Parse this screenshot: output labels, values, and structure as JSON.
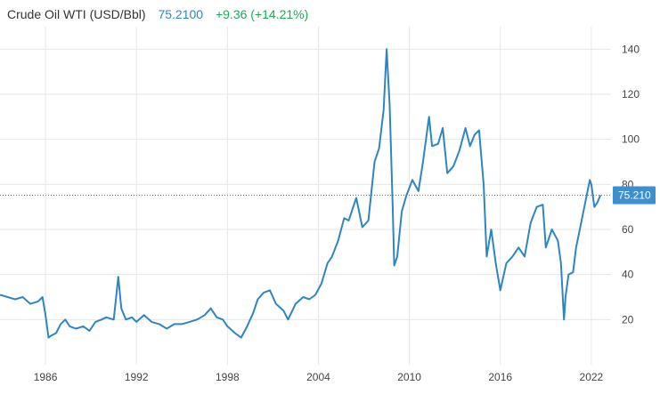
{
  "header": {
    "title": "Crude Oil WTI (USD/Bbl)",
    "price": "75.2100",
    "change": "+9.36 (+14.21%)"
  },
  "colors": {
    "line": "#2e86c1",
    "grid": "#e6e6e6",
    "change_positive": "#1aaa55",
    "badge_bg": "#3d8fcf"
  },
  "chart_data": {
    "type": "line",
    "title": "Crude Oil WTI (USD/Bbl)",
    "xlabel": "",
    "ylabel": "",
    "xlim": [
      1983,
      2023.3
    ],
    "ylim": [
      0,
      150
    ],
    "x_ticks": [
      1986,
      1992,
      1998,
      2004,
      2010,
      2016,
      2022
    ],
    "y_ticks": [
      20,
      40,
      60,
      80,
      100,
      120,
      140
    ],
    "grid": true,
    "last_value_label": "75.210",
    "last_value": 75.21,
    "series": [
      {
        "name": "",
        "x": [
          1983.0,
          1983.5,
          1984.0,
          1984.5,
          1985.0,
          1985.5,
          1985.8,
          1986.0,
          1986.2,
          1986.4,
          1986.7,
          1987.0,
          1987.3,
          1987.6,
          1988.0,
          1988.5,
          1988.9,
          1989.3,
          1989.7,
          1990.0,
          1990.5,
          1990.8,
          1991.0,
          1991.3,
          1991.7,
          1992.0,
          1992.5,
          1993.0,
          1993.5,
          1994.0,
          1994.5,
          1995.0,
          1995.5,
          1996.0,
          1996.5,
          1996.9,
          1997.3,
          1997.7,
          1998.0,
          1998.5,
          1998.9,
          1999.3,
          1999.7,
          2000.0,
          2000.4,
          2000.8,
          2001.2,
          2001.7,
          2002.0,
          2002.5,
          2003.0,
          2003.4,
          2003.8,
          2004.2,
          2004.6,
          2004.9,
          2005.3,
          2005.7,
          2006.0,
          2006.5,
          2006.9,
          2007.3,
          2007.7,
          2008.0,
          2008.3,
          2008.5,
          2008.7,
          2008.9,
          2009.0,
          2009.2,
          2009.5,
          2009.8,
          2010.2,
          2010.6,
          2010.9,
          2011.3,
          2011.5,
          2011.9,
          2012.2,
          2012.5,
          2012.9,
          2013.3,
          2013.7,
          2014.0,
          2014.3,
          2014.6,
          2014.9,
          2015.1,
          2015.4,
          2015.7,
          2016.0,
          2016.4,
          2016.8,
          2017.2,
          2017.6,
          2018.0,
          2018.4,
          2018.8,
          2019.0,
          2019.4,
          2019.8,
          2020.0,
          2020.2,
          2020.3,
          2020.5,
          2020.8,
          2021.0,
          2021.3,
          2021.6,
          2021.9,
          2022.0,
          2022.2,
          2022.4,
          2022.6
        ],
        "values": [
          31,
          30,
          29,
          30,
          27,
          28,
          30,
          22,
          12,
          13,
          14,
          18,
          20,
          17,
          16,
          17,
          15,
          19,
          20,
          21,
          20,
          39,
          25,
          20,
          21,
          19,
          22,
          19,
          18,
          16,
          18,
          18,
          19,
          20,
          22,
          25,
          21,
          20,
          17,
          14,
          12,
          17,
          23,
          29,
          32,
          33,
          27,
          24,
          20,
          27,
          30,
          29,
          31,
          36,
          45,
          48,
          55,
          65,
          64,
          74,
          61,
          64,
          90,
          96,
          113,
          140,
          115,
          70,
          44,
          48,
          68,
          75,
          82,
          77,
          90,
          110,
          97,
          98,
          105,
          85,
          88,
          95,
          105,
          97,
          102,
          104,
          80,
          48,
          60,
          45,
          33,
          45,
          48,
          52,
          48,
          63,
          70,
          71,
          52,
          60,
          55,
          45,
          20,
          30,
          40,
          41,
          52,
          62,
          72,
          82,
          80,
          70,
          72,
          75.21
        ]
      }
    ]
  }
}
